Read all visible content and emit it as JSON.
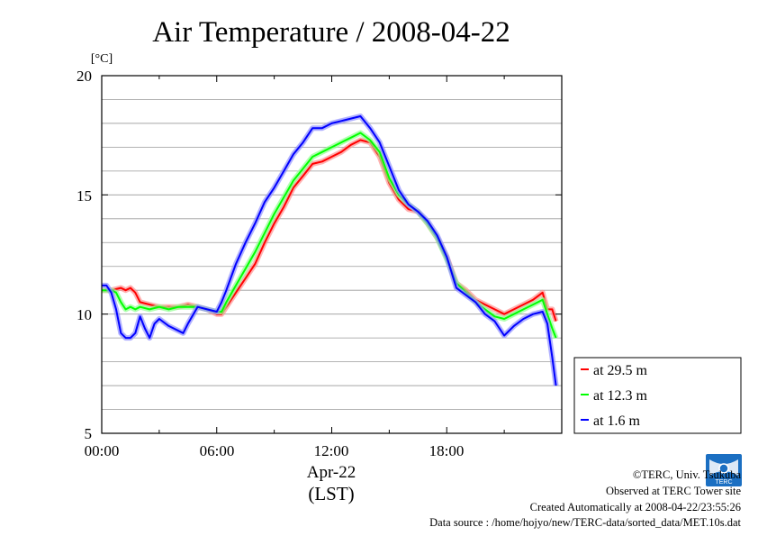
{
  "chart_data": {
    "type": "line",
    "title": "Air Temperature / 2008-04-22",
    "unit_label": "[°C]",
    "ylim": [
      5,
      20
    ],
    "yticks": [
      5,
      10,
      15,
      20
    ],
    "xlim": [
      0,
      24
    ],
    "xticks": [
      0,
      6,
      12,
      18
    ],
    "xtick_labels": [
      "00:00",
      "06:00",
      "12:00",
      "18:00"
    ],
    "date_label": "Apr-22",
    "xlabel": "(LST)",
    "grid": true,
    "legend_position": "right",
    "series": [
      {
        "name": "at 29.5 m",
        "color": "#ff0000",
        "x": [
          0,
          0.25,
          0.5,
          0.75,
          1,
          1.25,
          1.5,
          1.75,
          2,
          2.5,
          3,
          3.5,
          4,
          4.5,
          5,
          5.5,
          6,
          6.25,
          6.5,
          7,
          7.5,
          8,
          8.5,
          9,
          9.5,
          10,
          10.5,
          11,
          11.5,
          12,
          12.5,
          13,
          13.5,
          14,
          14.5,
          15,
          15.5,
          16,
          16.5,
          17,
          17.5,
          18,
          18.5,
          19,
          19.5,
          20,
          20.5,
          21,
          21.5,
          22,
          22.5,
          23,
          23.25,
          23.5,
          23.7
        ],
        "values": [
          11.0,
          11.0,
          11.0,
          11.05,
          11.1,
          11.0,
          11.1,
          10.9,
          10.5,
          10.4,
          10.3,
          10.3,
          10.3,
          10.4,
          10.3,
          10.2,
          10.0,
          10.0,
          10.3,
          10.9,
          11.5,
          12.1,
          13.0,
          13.8,
          14.5,
          15.3,
          15.8,
          16.3,
          16.4,
          16.6,
          16.8,
          17.1,
          17.3,
          17.2,
          16.6,
          15.5,
          14.8,
          14.4,
          14.3,
          13.8,
          13.2,
          12.4,
          11.3,
          11.0,
          10.6,
          10.4,
          10.2,
          10.0,
          10.2,
          10.4,
          10.6,
          10.9,
          10.2,
          10.2,
          9.7
        ]
      },
      {
        "name": "at 12.3 m",
        "color": "#00ff00",
        "x": [
          0,
          0.25,
          0.5,
          0.75,
          1,
          1.25,
          1.5,
          1.75,
          2,
          2.5,
          3,
          3.5,
          4,
          4.5,
          5,
          5.5,
          6,
          6.25,
          6.5,
          7,
          7.5,
          8,
          8.5,
          9,
          9.5,
          10,
          10.5,
          11,
          11.5,
          12,
          12.5,
          13,
          13.5,
          14,
          14.5,
          15,
          15.5,
          16,
          16.5,
          17,
          17.5,
          18,
          18.5,
          19,
          19.5,
          20,
          20.5,
          21,
          21.5,
          22,
          22.5,
          23,
          23.25,
          23.5,
          23.7
        ],
        "values": [
          11.0,
          11.0,
          11.0,
          10.9,
          10.5,
          10.2,
          10.3,
          10.2,
          10.3,
          10.2,
          10.3,
          10.2,
          10.3,
          10.3,
          10.3,
          10.2,
          10.1,
          10.1,
          10.5,
          11.2,
          11.9,
          12.6,
          13.4,
          14.2,
          14.9,
          15.6,
          16.1,
          16.6,
          16.8,
          17.0,
          17.2,
          17.4,
          17.6,
          17.3,
          16.8,
          15.7,
          15.0,
          14.6,
          14.3,
          13.8,
          13.2,
          12.3,
          11.3,
          10.9,
          10.5,
          10.2,
          9.9,
          9.8,
          10.0,
          10.2,
          10.4,
          10.6,
          10.0,
          9.4,
          9.0
        ]
      },
      {
        "name": "at 1.6 m",
        "color": "#0000ff",
        "x": [
          0,
          0.25,
          0.5,
          0.75,
          1,
          1.25,
          1.5,
          1.75,
          2,
          2.25,
          2.5,
          2.75,
          3,
          3.5,
          4,
          4.25,
          4.5,
          5,
          5.5,
          6,
          6.25,
          6.5,
          7,
          7.5,
          8,
          8.5,
          9,
          9.5,
          10,
          10.5,
          11,
          11.5,
          12,
          12.5,
          13,
          13.5,
          14,
          14.5,
          15,
          15.5,
          16,
          16.5,
          17,
          17.5,
          18,
          18.5,
          19,
          19.5,
          20,
          20.5,
          21,
          21.5,
          22,
          22.5,
          23,
          23.25,
          23.5,
          23.7
        ],
        "values": [
          11.2,
          11.2,
          10.9,
          10.2,
          9.2,
          9.0,
          9.0,
          9.2,
          9.9,
          9.4,
          9.0,
          9.6,
          9.8,
          9.5,
          9.3,
          9.2,
          9.6,
          10.3,
          10.2,
          10.1,
          10.5,
          11.0,
          12.1,
          13.0,
          13.8,
          14.7,
          15.3,
          16.0,
          16.7,
          17.2,
          17.8,
          17.8,
          18.0,
          18.1,
          18.2,
          18.3,
          17.8,
          17.2,
          16.2,
          15.2,
          14.6,
          14.3,
          13.9,
          13.3,
          12.4,
          11.1,
          10.8,
          10.5,
          10.0,
          9.7,
          9.1,
          9.5,
          9.8,
          10.0,
          10.1,
          9.6,
          8.2,
          7.0
        ]
      }
    ]
  },
  "credits": {
    "copyright": "©TERC, Univ. Tsukuba",
    "site": "Observed at TERC Tower site",
    "created": "Created Automatically at 2008-04-22/23:55:26",
    "source": "Data source : /home/hojyo/new/TERC-data/sorted_data/MET.10s.dat",
    "logo_text": "TERC"
  }
}
